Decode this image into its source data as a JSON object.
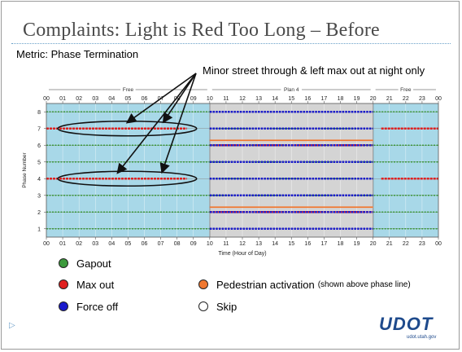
{
  "slide": {
    "title": "Complaints: Light is Red Too Long – Before",
    "metric": "Metric: Phase Termination",
    "annotation": "Minor street through & left max out at night only"
  },
  "legend": [
    {
      "id": "gapout",
      "label": "Gapout",
      "color": "#3c9a3c",
      "note": ""
    },
    {
      "id": "maxout",
      "label": "Max out",
      "color": "#e02020",
      "note": ""
    },
    {
      "id": "pedestrian",
      "label": "Pedestrian activation",
      "color": "#f07830",
      "note": "(shown above phase line)"
    },
    {
      "id": "forceoff",
      "label": "Force off",
      "color": "#1a1acc",
      "note": ""
    },
    {
      "id": "skip",
      "label": "Skip",
      "color": "#ffffff",
      "note": ""
    }
  ],
  "logo": {
    "text": "UDOT",
    "subtext": "udot.utah.gov"
  },
  "chart_data": {
    "type": "scatter",
    "xlabel": "Time (Hour of Day)",
    "ylabel": "Phase Number",
    "xlim": [
      0,
      24
    ],
    "ylim": [
      0.5,
      8.5
    ],
    "x_ticks": [
      "00",
      "01",
      "02",
      "03",
      "04",
      "05",
      "06",
      "07",
      "08",
      "09",
      "10",
      "11",
      "12",
      "13",
      "14",
      "15",
      "16",
      "17",
      "18",
      "19",
      "20",
      "21",
      "22",
      "23",
      "00"
    ],
    "y_ticks": [
      1,
      2,
      3,
      4,
      5,
      6,
      7,
      8
    ],
    "plans": [
      {
        "name": "Free",
        "start": 0,
        "end": 10,
        "color": "#a8d8e8"
      },
      {
        "name": "Plan 4",
        "start": 10,
        "end": 20,
        "color": "#d4d4d4"
      },
      {
        "name": "Free",
        "start": 20,
        "end": 24,
        "color": "#a8d8e8"
      }
    ],
    "series": [
      {
        "name": "Gapout",
        "color": "#3c9a3c",
        "segments": [
          {
            "phase": 1,
            "start": 0,
            "end": 10
          },
          {
            "phase": 1,
            "start": 20,
            "end": 24
          },
          {
            "phase": 2,
            "start": 0,
            "end": 10
          },
          {
            "phase": 2,
            "start": 20,
            "end": 24
          },
          {
            "phase": 3,
            "start": 0,
            "end": 24
          },
          {
            "phase": 4,
            "start": 10,
            "end": 20
          },
          {
            "phase": 5,
            "start": 0,
            "end": 24
          },
          {
            "phase": 6,
            "start": 0,
            "end": 24
          },
          {
            "phase": 7,
            "start": 10,
            "end": 20
          },
          {
            "phase": 8,
            "start": 0,
            "end": 10
          },
          {
            "phase": 8,
            "start": 20,
            "end": 24
          }
        ]
      },
      {
        "name": "Max out",
        "color": "#e02020",
        "segments": [
          {
            "phase": 4,
            "start": 0,
            "end": 8.6
          },
          {
            "phase": 4,
            "start": 20.5,
            "end": 24
          },
          {
            "phase": 7,
            "start": 0,
            "end": 8.6
          },
          {
            "phase": 7,
            "start": 20.5,
            "end": 24
          },
          {
            "phase": 2,
            "start": 10,
            "end": 20
          },
          {
            "phase": 6,
            "start": 10,
            "end": 20
          }
        ]
      },
      {
        "name": "Force off",
        "color": "#1a1acc",
        "segments": [
          {
            "phase": 1,
            "start": 10,
            "end": 20
          },
          {
            "phase": 2,
            "start": 10,
            "end": 20
          },
          {
            "phase": 3,
            "start": 10,
            "end": 20
          },
          {
            "phase": 4,
            "start": 10,
            "end": 20
          },
          {
            "phase": 5,
            "start": 10,
            "end": 20
          },
          {
            "phase": 6,
            "start": 10,
            "end": 20
          },
          {
            "phase": 7,
            "start": 10,
            "end": 20
          },
          {
            "phase": 8,
            "start": 10,
            "end": 20
          }
        ]
      },
      {
        "name": "Pedestrian activation",
        "color": "#f07830",
        "segments": [
          {
            "phase": 2,
            "start": 10,
            "end": 20
          },
          {
            "phase": 6,
            "start": 10,
            "end": 20
          }
        ]
      }
    ],
    "highlight_ellipses": [
      {
        "phase": 7,
        "start": 0.7,
        "end": 9.2
      },
      {
        "phase": 4,
        "start": 0.7,
        "end": 9.2
      }
    ]
  }
}
